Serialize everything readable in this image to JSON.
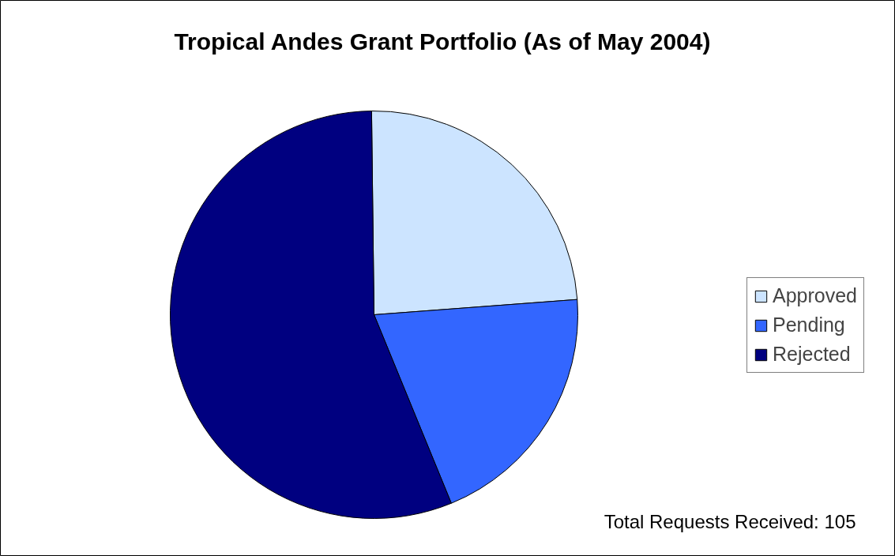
{
  "chart_data": {
    "type": "pie",
    "title": "Tropical Andes Grant Portfolio (As of May 2004)",
    "categories": [
      "Approved",
      "Pending",
      "Rejected"
    ],
    "values": [
      24,
      20,
      56
    ],
    "colors": [
      "#cce4ff",
      "#3366ff",
      "#000080"
    ],
    "legend": "right",
    "annotations": [
      "Total Requests Received: 105"
    ]
  }
}
